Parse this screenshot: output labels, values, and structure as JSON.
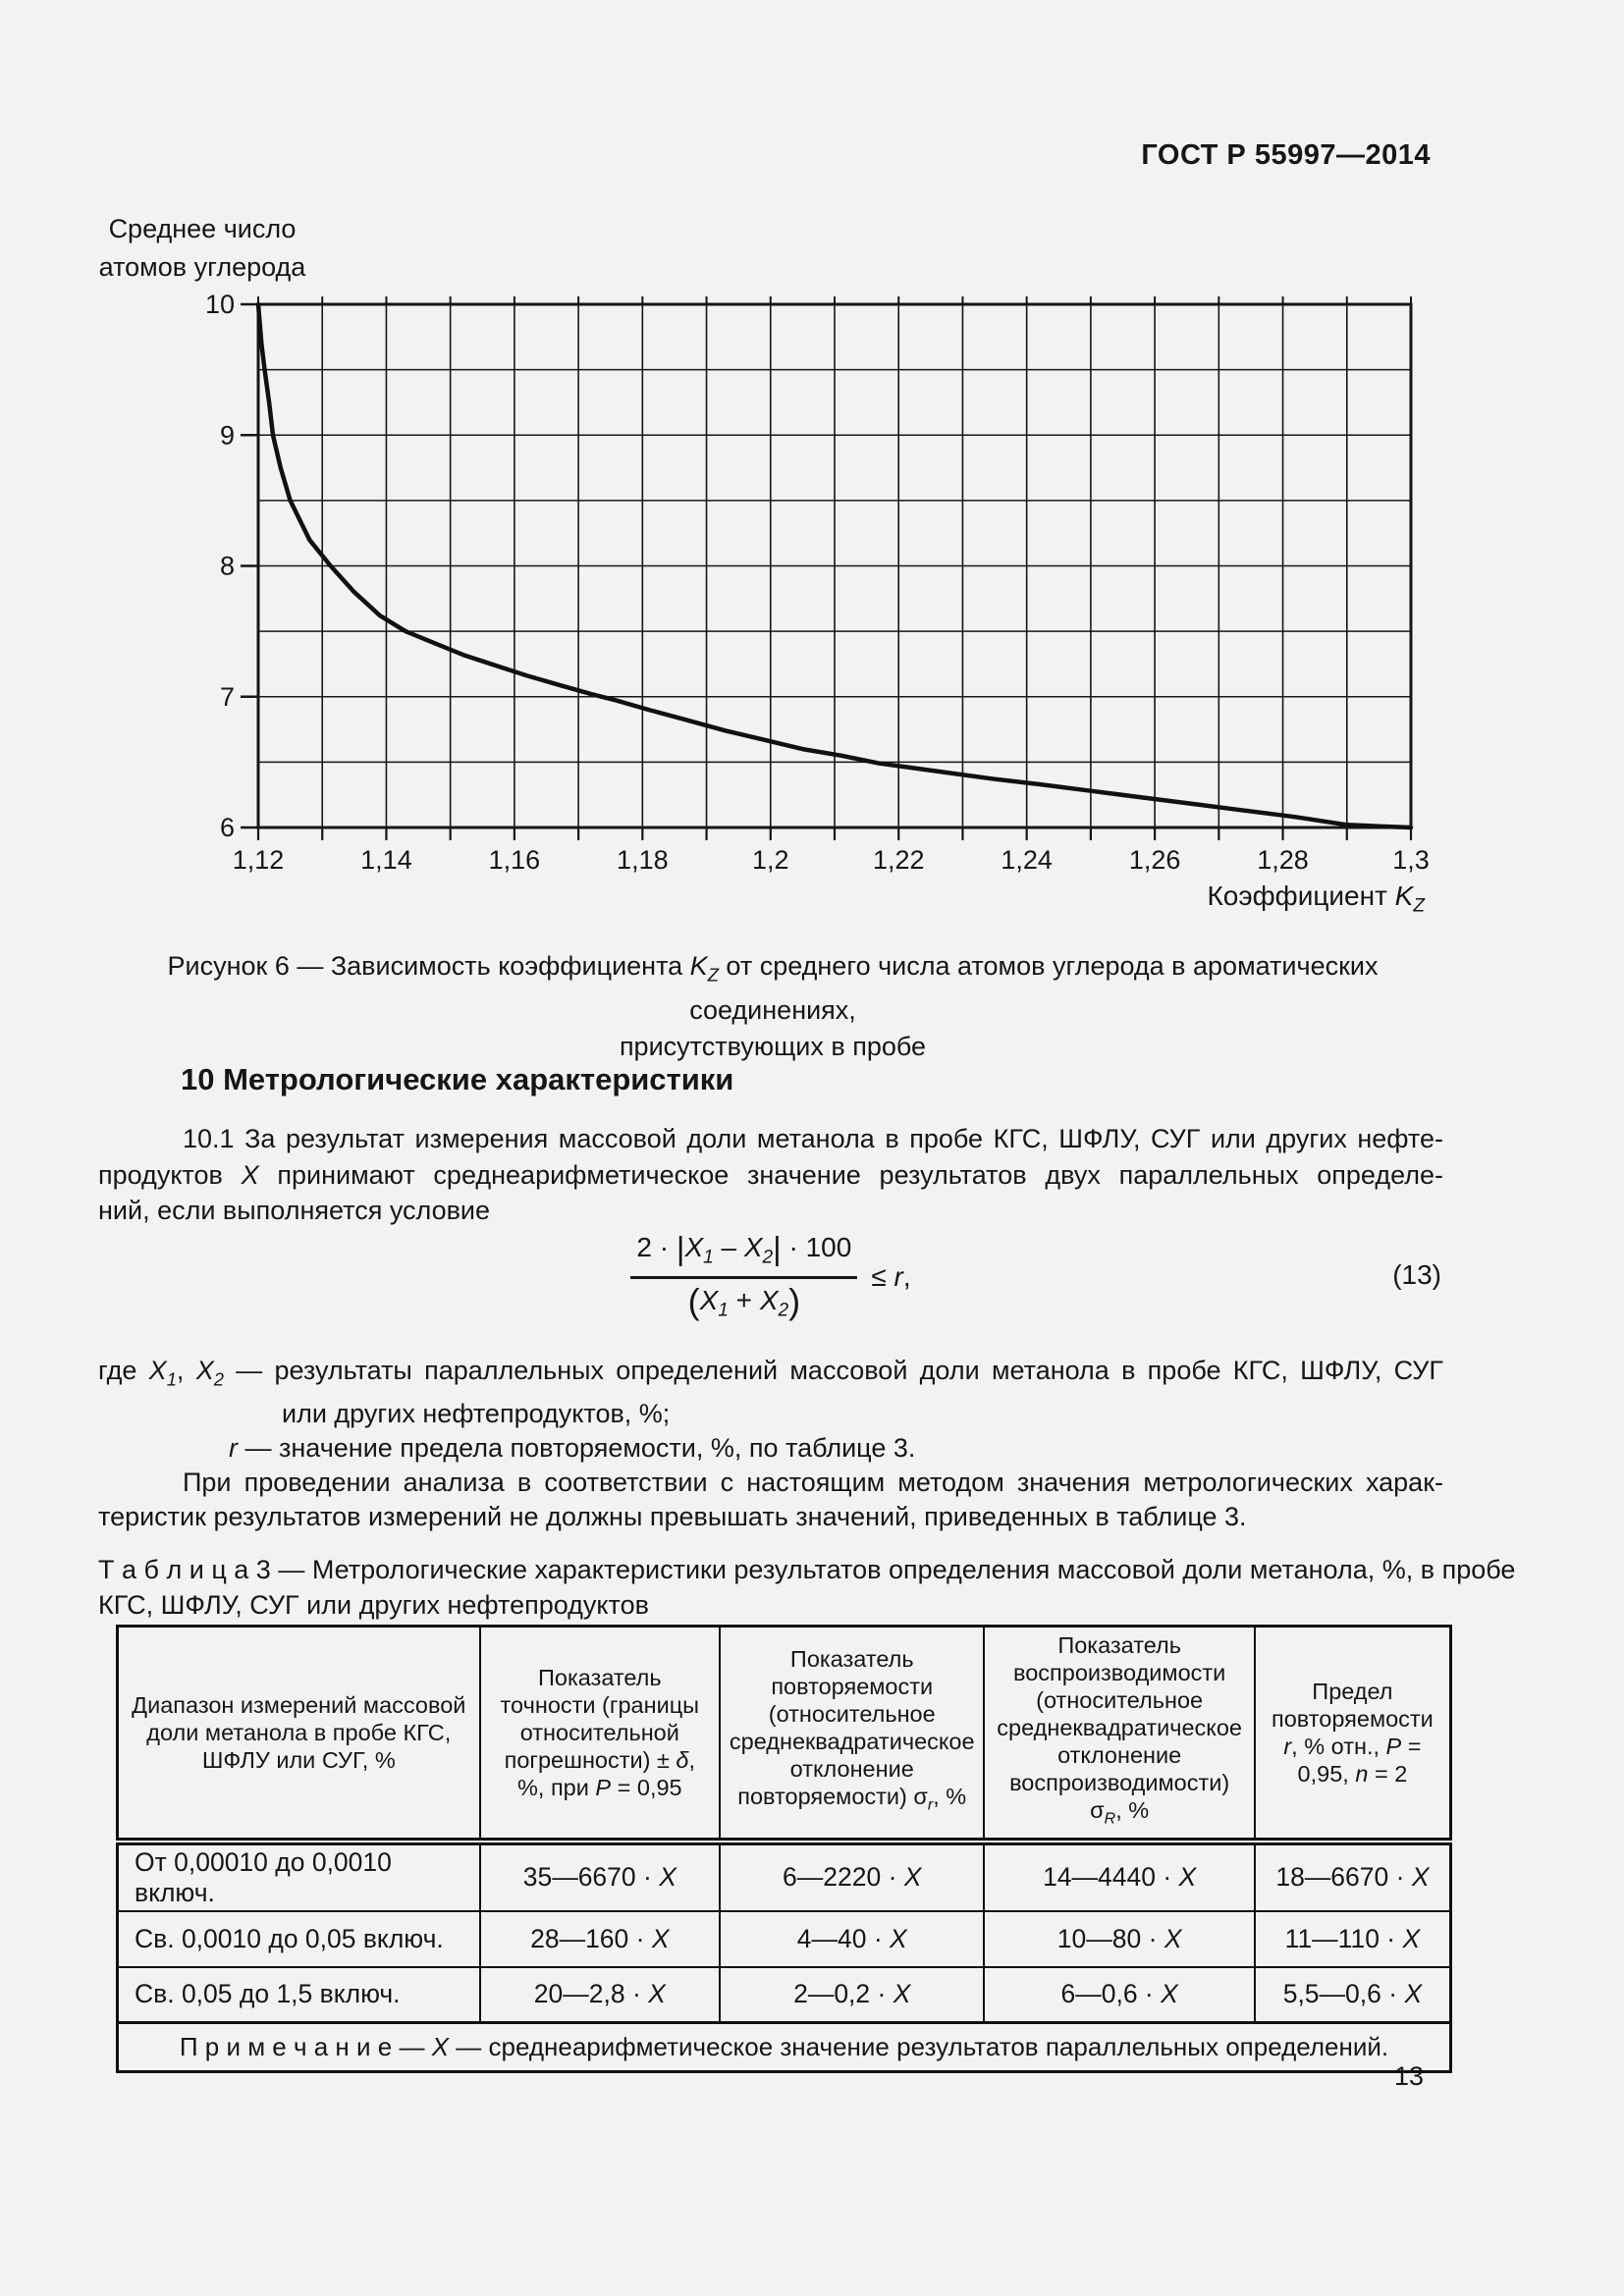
{
  "page": {
    "bg": "#f2f2f2",
    "fg": "#161616"
  },
  "header": {
    "title": "ГОСТ Р 55997—2014"
  },
  "chart_data": {
    "type": "line",
    "title": "",
    "y_axis_title_lines": [
      "Среднее число",
      "атомов углерода"
    ],
    "x_axis_title": {
      "text": "Коэффициент ",
      "symbol": "K",
      "symbol_sub": "Z"
    },
    "xlim": [
      1.12,
      1.3
    ],
    "ylim": [
      6,
      10
    ],
    "x_grid_step": 0.01,
    "y_grid_step": 0.5,
    "grid": true,
    "legend_position": "none",
    "x_ticks": [
      {
        "v": 1.12,
        "label": "1,12"
      },
      {
        "v": 1.14,
        "label": "1,14"
      },
      {
        "v": 1.16,
        "label": "1,16"
      },
      {
        "v": 1.18,
        "label": "1,18"
      },
      {
        "v": 1.2,
        "label": "1,2"
      },
      {
        "v": 1.22,
        "label": "1,22"
      },
      {
        "v": 1.24,
        "label": "1,24"
      },
      {
        "v": 1.26,
        "label": "1,26"
      },
      {
        "v": 1.28,
        "label": "1,28"
      },
      {
        "v": 1.3,
        "label": "1,3"
      }
    ],
    "y_ticks": [
      {
        "v": 6,
        "label": "6"
      },
      {
        "v": 7,
        "label": "7"
      },
      {
        "v": 8,
        "label": "8"
      },
      {
        "v": 9,
        "label": "9"
      },
      {
        "v": 10,
        "label": "10"
      }
    ],
    "series": [
      {
        "name": "Зависимость коэффициента Kz от среднего числа атомов углерода",
        "points": [
          [
            1.12,
            10
          ],
          [
            1.1205,
            9.7
          ],
          [
            1.121,
            9.5
          ],
          [
            1.1217,
            9.25
          ],
          [
            1.1223,
            9.0
          ],
          [
            1.1235,
            8.75
          ],
          [
            1.125,
            8.5
          ],
          [
            1.128,
            8.2
          ],
          [
            1.1313,
            8.0
          ],
          [
            1.135,
            7.8
          ],
          [
            1.139,
            7.62
          ],
          [
            1.143,
            7.5
          ],
          [
            1.147,
            7.42
          ],
          [
            1.152,
            7.32
          ],
          [
            1.157,
            7.24
          ],
          [
            1.162,
            7.16
          ],
          [
            1.167,
            7.09
          ],
          [
            1.172,
            7.02
          ],
          [
            1.176,
            6.97
          ],
          [
            1.181,
            6.9
          ],
          [
            1.187,
            6.82
          ],
          [
            1.193,
            6.74
          ],
          [
            1.199,
            6.67
          ],
          [
            1.205,
            6.6
          ],
          [
            1.211,
            6.55
          ],
          [
            1.217,
            6.49
          ],
          [
            1.223,
            6.45
          ],
          [
            1.229,
            6.41
          ],
          [
            1.235,
            6.37
          ],
          [
            1.242,
            6.33
          ],
          [
            1.25,
            6.28
          ],
          [
            1.258,
            6.23
          ],
          [
            1.266,
            6.18
          ],
          [
            1.274,
            6.13
          ],
          [
            1.282,
            6.08
          ],
          [
            1.286,
            6.05
          ],
          [
            1.29,
            6.02
          ],
          [
            1.295,
            6.01
          ],
          [
            1.3,
            6.0
          ]
        ]
      }
    ]
  },
  "figure_caption": {
    "prefix": "Рисунок 6 — Зависимость коэффициента ",
    "symbol": "K",
    "symbol_sub": "Z",
    "suffix": " от среднего числа атомов углерода в ароматических соединениях,",
    "line2": "присутствующих в пробе"
  },
  "section": {
    "heading": "10 Метрологические характеристики"
  },
  "para101": {
    "line1": "10.1 За результат измерения массовой доли метанола в пробе КГС, ШФЛУ, СУГ или других нефте-",
    "line2": {
      "s1": "продуктов ",
      "x": "X",
      "s2": " принимают среднеарифметическое значение результатов двух параллельных определе-"
    },
    "line3": "ний, если выполняется условие"
  },
  "formula": {
    "numerator": {
      "s1": "2 · ",
      "bar1": "|",
      "x1": "X",
      "x1sub": "1",
      "s2": " – ",
      "x2": "X",
      "x2sub": "2",
      "bar2": "|",
      "s3": " · 100"
    },
    "denominator": {
      "s1": "(",
      "x1": "X",
      "x1sub": "1",
      "s2": " + ",
      "x2": "X",
      "x2sub": "2",
      "s3": ")"
    },
    "relation": {
      "leq": "≤ ",
      "r": "r",
      "comma": ","
    },
    "number": "(13)"
  },
  "where_block": {
    "line1": {
      "s1": "где ",
      "x1": "X",
      "x1sub": "1",
      "s2": ", ",
      "x2": "X",
      "x2sub": "2",
      "s3": " — результаты параллельных определений массовой доли метанола в пробе КГС, ШФЛУ, СУГ"
    },
    "line2": "или других нефтепродуктов, %;",
    "line3": {
      "r": "r",
      "s1": " — значение предела повторяемости, %, по таблице 3."
    },
    "para_line1": "При проведении анализа в соответствии с настоящим методом значения метрологических харак-",
    "para_line2": "теристик результатов измерений не должны превышать значений, приведенных в таблице 3."
  },
  "table": {
    "caption_line1": "Т а б л и ц а  3  —  Метрологические характеристики результатов определения массовой доли метанола, %, в пробе",
    "caption_line2": "КГС, ШФЛУ, СУГ или других нефтепродуктов",
    "headers": {
      "col1": "Диапазон измерений массовой доли метанола в пробе КГС, ШФЛУ или СУГ, %",
      "col2": {
        "s1": "Показатель точности (границы относительной погрешности) ± ",
        "delta": "δ",
        "s2": ", %, при ",
        "p": "P",
        "s3": " = 0,95"
      },
      "col3": {
        "s1": "Показатель повторяемости (относительное среднеквадратическое отклонение повторяемости) ",
        "sigma": "σ",
        "sub": "r",
        "s2": ", %"
      },
      "col4": {
        "s1": "Показатель воспроизводимости (относительное среднеквадратическое отклонение воспроизводимости) ",
        "sigma": "σ",
        "sub": "R",
        "s2": ", %"
      },
      "col5": {
        "s1": "Предел повторяемости ",
        "r": "r",
        "s2": ", % отн., ",
        "p": "P",
        "s3": " = 0,95, ",
        "n": "n",
        "s4": " = 2"
      }
    },
    "x_symbol": "X",
    "rows": [
      {
        "range": "От 0,00010 до 0,0010 включ.",
        "accuracy": "35—6670 · ",
        "repeatability": "6—2220 · ",
        "reproducibility": "14—4440 · ",
        "limit": "18—6670 · "
      },
      {
        "range": "Св. 0,0010 до 0,05 включ.",
        "accuracy": "28—160 · ",
        "repeatability": "4—40 · ",
        "reproducibility": "10—80 · ",
        "limit": "11—110 · "
      },
      {
        "range": "Св. 0,05 до 1,5 включ.",
        "accuracy": "20—2,8 · ",
        "repeatability": "2—0,2 · ",
        "reproducibility": "6—0,6 · ",
        "limit": "5,5—0,6 · "
      }
    ],
    "note": {
      "label": "П р и м е ч а н и е",
      "dash": " — ",
      "x": "X",
      "text": " — среднеарифметическое значение результатов параллельных определений."
    }
  },
  "footer": {
    "page_number": "13"
  }
}
